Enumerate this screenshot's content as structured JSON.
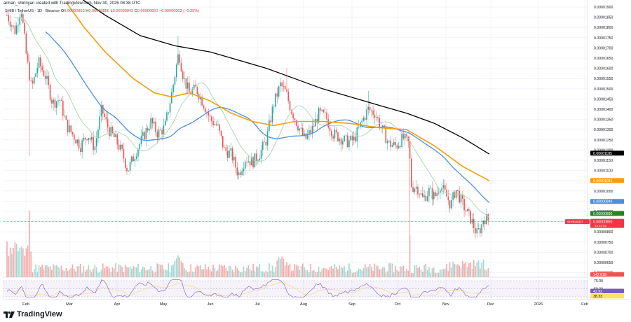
{
  "header": {
    "credit": "arman_shirinyan created with TradingView.com, Nov 30, 2025 08:38 UTC",
    "symbol": "SHIB / TetherUS · 1D · Binance",
    "open_label": "O",
    "open": "0.00000853",
    "high_label": "H",
    "high": "0.00000856",
    "low_label": "L",
    "low": "0.00000843",
    "close_label": "C",
    "close": "0.00000850",
    "change": "−0.00000003 (−0.35%)"
  },
  "footer": {
    "brand": "TradingView"
  },
  "colors": {
    "up": "#26a69a",
    "down": "#ef5350",
    "ma_fast": "#a5d6a7",
    "ma_mid": "#4a90e2",
    "ma_slow": "#f59e0b",
    "ma_long": "#000000",
    "rsi": "#7e57c2",
    "rsi_ma": "#f5d97a"
  },
  "chart_data": {
    "type": "candlestick",
    "title": "SHIB / TetherUS · 1D · Binance",
    "price_axis": {
      "ticks": [
        "0.00001900",
        "0.00001850",
        "0.00001800",
        "0.00001750",
        "0.00001700",
        "0.00001650",
        "0.00001600",
        "0.00001550",
        "0.00001500",
        "0.00001450",
        "0.00001400",
        "0.00001350",
        "0.00001300",
        "0.00001250",
        "0.00001200",
        "0.00001150",
        "0.00001100",
        "0.00001050",
        "0.00001000",
        "0.00000950",
        "0.00000900",
        "0.00000850",
        "0.00000800",
        "0.00000750",
        "0.00000700",
        "0.00000650",
        "0.00000600"
      ],
      "range": [
        6e-06,
        1.91e-05
      ]
    },
    "time_axis": [
      "Feb",
      "Mar",
      "Apr",
      "May",
      "Jun",
      "Jul",
      "Aug",
      "Sep",
      "Oct",
      "Nov",
      "Dec",
      "2026",
      "Feb"
    ],
    "price_labels": [
      {
        "name": "MA200",
        "value": "0.00001185",
        "color": "#000000"
      },
      {
        "name": "MA100",
        "value": "0.00001051",
        "color": "#f59e0b"
      },
      {
        "name": "MA50",
        "value": "0.00000949",
        "color": "#4a90e2"
      },
      {
        "name": "MA20",
        "value": "0.00000890",
        "color": "#1b8a1b"
      },
      {
        "name": "SHIBUSDT",
        "value": "0.00000850",
        "countdown": "15:21:52",
        "color": "#f23645"
      }
    ],
    "volume": {
      "last_label": "142.61B"
    },
    "rsi": {
      "ticks": [
        "75.00",
        "50.00",
        "25.00"
      ],
      "value": "42.92",
      "ma_value": "38.33"
    },
    "ohlc_last": {
      "open": 8.53e-06,
      "high": 8.56e-06,
      "low": 8.43e-06,
      "close": 8.5e-06,
      "change_pct": -0.35
    },
    "key_points": [
      {
        "date": "late Jan",
        "price": 1.9e-05
      },
      {
        "date": "early Feb low wick",
        "price": 1.17e-05
      },
      {
        "date": "early Apr low",
        "price": 1.05e-05
      },
      {
        "date": "mid May high",
        "price": 1.76e-05
      },
      {
        "date": "late Jun low",
        "price": 1.02e-05
      },
      {
        "date": "late Jul high",
        "price": 1.6e-05
      },
      {
        "date": "mid Sep high",
        "price": 1.48e-05
      },
      {
        "date": "Oct 10 crash wick",
        "price": 6.5e-06
      },
      {
        "date": "late Nov low",
        "price": 7.7e-06
      },
      {
        "date": "Nov 30 close",
        "price": 8.5e-06
      }
    ]
  }
}
